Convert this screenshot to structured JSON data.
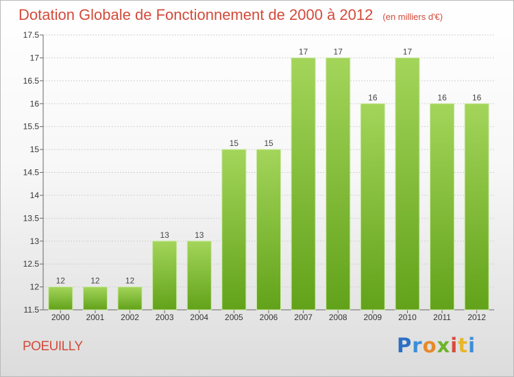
{
  "header": {
    "title": "Dotation Globale de Fonctionnement de 2000 à 2012",
    "subtitle": "(en milliers d'€)"
  },
  "footer": {
    "place": "POEUILLY",
    "logo_text": "Proxiti"
  },
  "colors": {
    "title": "#d34a3a",
    "bar_light": "#a3d55a",
    "bar_dark": "#62a21a"
  },
  "chart_data": {
    "type": "bar",
    "categories": [
      "2000",
      "2001",
      "2002",
      "2003",
      "2004",
      "2005",
      "2006",
      "2007",
      "2008",
      "2009",
      "2010",
      "2011",
      "2012"
    ],
    "values": [
      12,
      12,
      12,
      13,
      13,
      15,
      15,
      17,
      17,
      16,
      17,
      16,
      16
    ],
    "data_labels": [
      "12",
      "12",
      "12",
      "13",
      "13",
      "15",
      "15",
      "17",
      "17",
      "16",
      "17",
      "16",
      "16"
    ],
    "ylim": [
      11.5,
      17.5
    ],
    "yticks": [
      11.5,
      12,
      12.5,
      13,
      13.5,
      14,
      14.5,
      15,
      15.5,
      16,
      16.5,
      17,
      17.5
    ],
    "ytick_labels": [
      "11.5",
      "12",
      "12.5",
      "13",
      "13.5",
      "14",
      "14.5",
      "15",
      "15.5",
      "16",
      "16.5",
      "17",
      "17.5"
    ],
    "grid": true,
    "legend": "none"
  }
}
